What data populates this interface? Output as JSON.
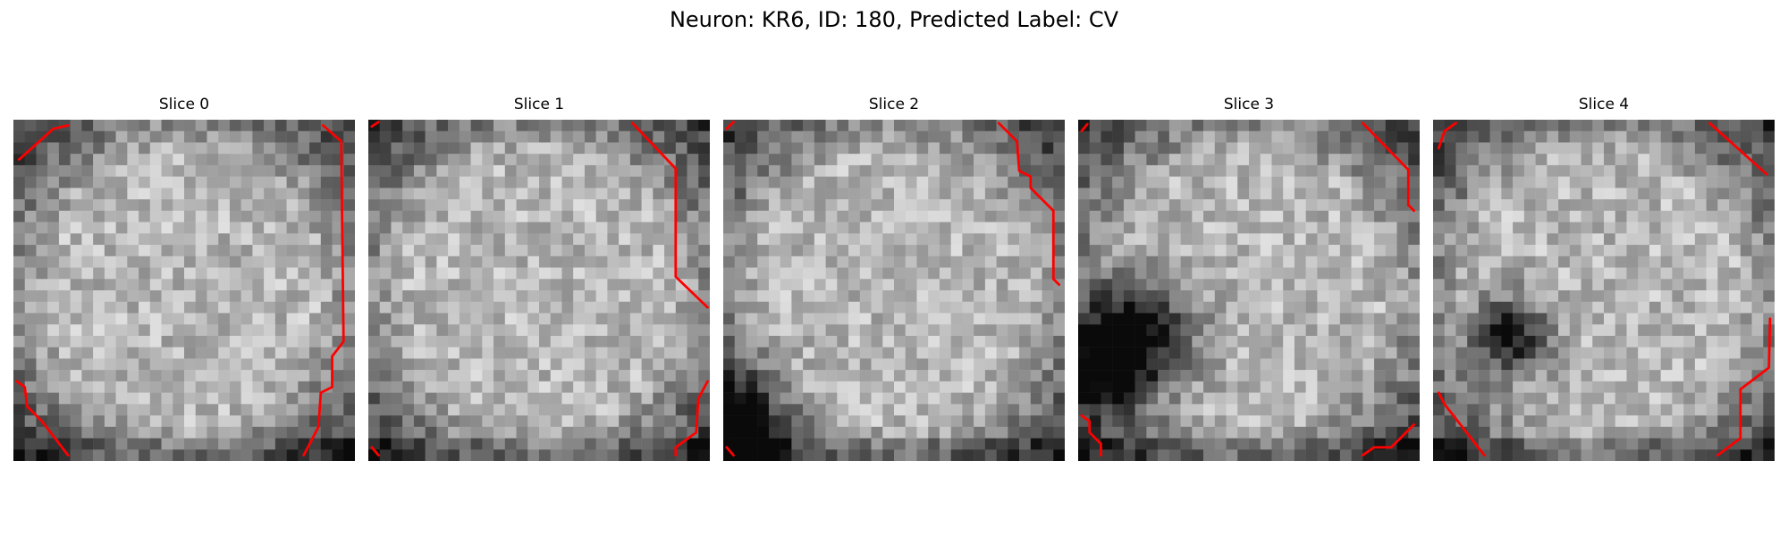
{
  "figure": {
    "title": "Neuron: KR6, ID: 180, Predicted Label: CV"
  },
  "colors": {
    "contour": "#ff0000",
    "background": "#ffffff"
  },
  "image_grid": {
    "rows": 30,
    "cols": 30,
    "colormap": "grayscale"
  },
  "slices": [
    {
      "title": "Slice 0",
      "grid_seed": 11,
      "dark_blobs": [],
      "contours": [
        [
          [
            0.5,
            3.5
          ],
          [
            3.5,
            0.8
          ],
          [
            4.8,
            0.5
          ]
        ],
        [
          [
            27.2,
            0.5
          ],
          [
            28.8,
            1.9
          ],
          [
            29.0,
            19.5
          ],
          [
            28.0,
            20.8
          ],
          [
            28.0,
            23.5
          ],
          [
            27.0,
            24.0
          ],
          [
            26.8,
            27.0
          ],
          [
            25.5,
            29.5
          ]
        ],
        [
          [
            0.3,
            23.0
          ],
          [
            1.0,
            23.5
          ],
          [
            1.2,
            25.2
          ],
          [
            2.5,
            26.5
          ],
          [
            4.8,
            29.5
          ]
        ]
      ]
    },
    {
      "title": "Slice 1",
      "grid_seed": 23,
      "dark_blobs": [],
      "contours": [
        [
          [
            0.3,
            0.6
          ],
          [
            0.9,
            0.2
          ]
        ],
        [
          [
            23.2,
            0.3
          ],
          [
            27.0,
            4.3
          ],
          [
            27.0,
            13.8
          ],
          [
            29.8,
            16.5
          ]
        ],
        [
          [
            29.8,
            23.0
          ],
          [
            29.0,
            24.5
          ],
          [
            28.8,
            27.5
          ],
          [
            27.0,
            28.8
          ],
          [
            27.0,
            29.5
          ]
        ],
        [
          [
            0.3,
            28.8
          ],
          [
            0.9,
            29.5
          ]
        ]
      ]
    },
    {
      "title": "Slice 2",
      "grid_seed": 37,
      "dark_blobs": [
        [
          0.7,
          26.5,
          3.5,
          0.5
        ]
      ],
      "contours": [
        [
          [
            0.3,
            0.8
          ],
          [
            0.9,
            0.2
          ]
        ],
        [
          [
            24.2,
            0.3
          ],
          [
            25.8,
            1.9
          ],
          [
            26.0,
            4.5
          ],
          [
            27.0,
            5.0
          ],
          [
            27.0,
            6.0
          ],
          [
            29.0,
            8.0
          ],
          [
            29.0,
            14.0
          ],
          [
            29.5,
            14.5
          ]
        ],
        [
          [
            0.3,
            28.8
          ],
          [
            0.9,
            29.5
          ]
        ]
      ]
    },
    {
      "title": "Slice 3",
      "grid_seed": 41,
      "dark_blobs": [
        [
          5.0,
          19.0,
          3.6,
          0.72
        ],
        [
          2.5,
          22.0,
          2.2,
          0.45
        ]
      ],
      "contours": [
        [
          [
            0.3,
            1.0
          ],
          [
            0.8,
            0.4
          ]
        ],
        [
          [
            25.0,
            0.3
          ],
          [
            29.0,
            4.4
          ],
          [
            29.0,
            7.5
          ],
          [
            29.5,
            8.0
          ]
        ],
        [
          [
            0.3,
            26.0
          ],
          [
            1.0,
            26.5
          ],
          [
            1.0,
            27.5
          ],
          [
            2.0,
            28.5
          ],
          [
            2.0,
            29.5
          ]
        ],
        [
          [
            25.0,
            29.5
          ],
          [
            26.0,
            28.8
          ],
          [
            27.5,
            28.8
          ],
          [
            29.5,
            26.8
          ]
        ]
      ]
    },
    {
      "title": "Slice 4",
      "grid_seed": 53,
      "dark_blobs": [
        [
          6.8,
          19.0,
          2.4,
          0.65
        ]
      ],
      "contours": [
        [
          [
            0.5,
            2.5
          ],
          [
            1.0,
            1.0
          ],
          [
            2.0,
            0.3
          ]
        ],
        [
          [
            24.3,
            0.3
          ],
          [
            29.3,
            4.8
          ]
        ],
        [
          [
            0.5,
            24.0
          ],
          [
            1.0,
            25.0
          ],
          [
            4.5,
            29.5
          ]
        ],
        [
          [
            25.0,
            29.5
          ],
          [
            27.0,
            28.0
          ],
          [
            27.0,
            23.7
          ],
          [
            29.5,
            21.8
          ],
          [
            29.6,
            17.5
          ]
        ]
      ]
    }
  ]
}
